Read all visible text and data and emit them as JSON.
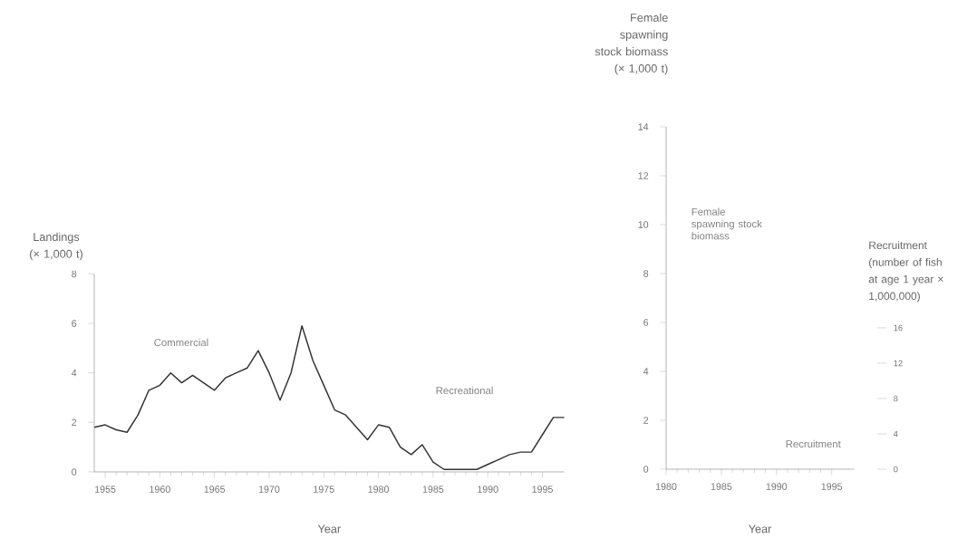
{
  "chart_data": [
    {
      "type": "line",
      "x": [
        1954,
        1955,
        1956,
        1957,
        1958,
        1959,
        1960,
        1961,
        1962,
        1963,
        1964,
        1965,
        1966,
        1967,
        1968,
        1969,
        1970,
        1971,
        1972,
        1973,
        1974,
        1975,
        1976,
        1977,
        1978,
        1979,
        1980,
        1981,
        1982,
        1983,
        1984,
        1985,
        1986,
        1987,
        1988,
        1989,
        1990,
        1991,
        1992,
        1993,
        1994,
        1995,
        1996,
        1997
      ],
      "series": [
        {
          "color": "#333333",
          "values": [
            1.8,
            1.9,
            1.7,
            1.6,
            2.3,
            3.3,
            3.5,
            4.0,
            3.6,
            3.9,
            3.6,
            3.3,
            3.8,
            4.0,
            4.2,
            4.9,
            4.0,
            2.9,
            4.0,
            5.9,
            4.5,
            3.5,
            2.5,
            2.3,
            1.8,
            1.3,
            1.9,
            1.8,
            1.0,
            0.7,
            1.1,
            0.4,
            0.1,
            0.1,
            0.1,
            0.1,
            0.3,
            0.5,
            0.7,
            0.8,
            0.8,
            1.5,
            2.2,
            2.2
          ]
        }
      ],
      "xlim": [
        1954,
        1997
      ],
      "xticks": [
        1955,
        1960,
        1965,
        1970,
        1975,
        1980,
        1985,
        1990,
        1995
      ],
      "ylim": [
        0,
        8
      ],
      "yticks": [
        0,
        2,
        4,
        6,
        8
      ],
      "xlabel": "Year",
      "ylabel": "Landings (× 1,000 t)",
      "annotations": [
        "Commercial",
        "Recreational"
      ]
    },
    {
      "type": "line",
      "xlim": [
        1980,
        1997
      ],
      "xticks": [
        1980,
        1985,
        1990,
        1995
      ],
      "ylim": [
        0,
        14
      ],
      "yticks": [
        0,
        2,
        4,
        6,
        8,
        10,
        12,
        14
      ],
      "y2lim": [
        0,
        16
      ],
      "y2ticks": [
        0,
        4,
        8,
        12,
        16
      ],
      "xlabel": "Year",
      "ylabel": "Female spawning stock biomass (× 1,000 t)",
      "y2label": "Recruitment (number of fish at age 1 year × 1,000,000)",
      "annotations": [
        "Female spawning stock biomass",
        "Recruitment"
      ]
    }
  ]
}
